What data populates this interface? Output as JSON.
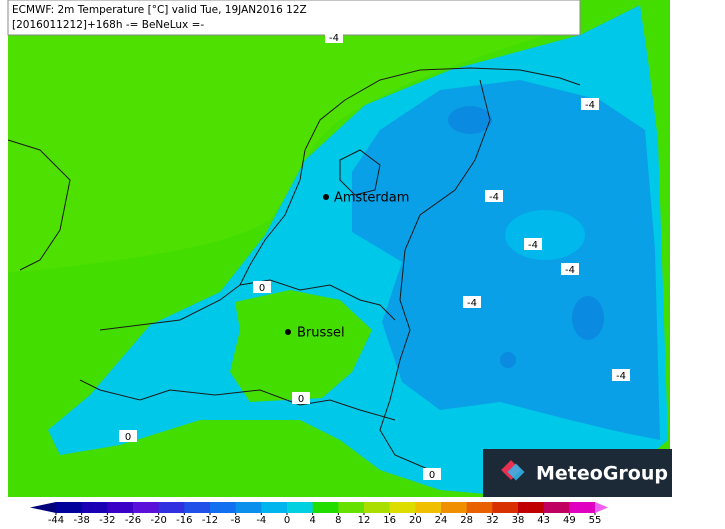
{
  "header": {
    "line1": "ECMWF: 2m Temperature [°C] valid Tue, 19JAN2016 12Z",
    "line2": "[2016011212]+168h -= BeNeLux =-"
  },
  "cities": [
    "Amsterdam",
    "Brussel"
  ],
  "contour_labels": [
    -4,
    -4,
    -4,
    -4,
    -4,
    -4,
    -4,
    0,
    0,
    0,
    0
  ],
  "colorbar": {
    "ticks": [
      -44,
      -38,
      -32,
      -26,
      -20,
      -16,
      -12,
      -8,
      -4,
      0,
      4,
      8,
      12,
      16,
      20,
      24,
      28,
      32,
      38,
      43,
      49,
      55
    ],
    "colors": [
      "#00007a",
      "#00009a",
      "#1a00b4",
      "#3a00c8",
      "#5a10d8",
      "#3030e0",
      "#2050e8",
      "#1070f0",
      "#0a90ec",
      "#00b4ee",
      "#00d0e0",
      "#22dd00",
      "#66e000",
      "#aadd00",
      "#dddd00",
      "#f0c000",
      "#f09000",
      "#e86000",
      "#d83000",
      "#c00000",
      "#c00060",
      "#e000c0",
      "#f060f0"
    ]
  },
  "logo": "MeteoGroup"
}
